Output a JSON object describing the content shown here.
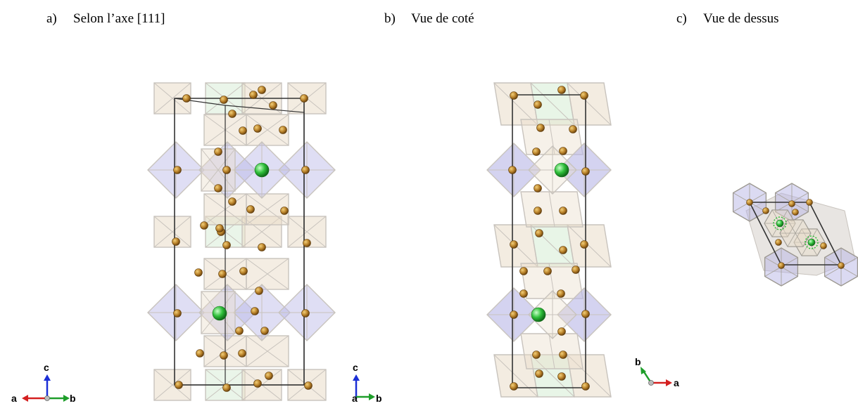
{
  "captions": {
    "a": {
      "letter": "a)",
      "text": "Selon l’axe [111]"
    },
    "b": {
      "letter": "b)",
      "text": "Vue de coté"
    },
    "c": {
      "letter": "c)",
      "text": "Vue de dessus"
    }
  },
  "triads": {
    "a": {
      "up": "c",
      "left": "a",
      "right": "b"
    },
    "b": {
      "up": "c",
      "left": "a",
      "right": "b"
    },
    "c": {
      "up": "b",
      "right": "a"
    }
  },
  "colors": {
    "octa_tan": "#e9dcc8",
    "octa_blue": "#b7b6e6",
    "octa_green": "#d5ecd3",
    "edge": "#c8c3bd",
    "cell": "#333333",
    "atom_brown": "#b07820",
    "atom_green": "#2fbf3a",
    "axis_red": "#d42020",
    "axis_green": "#1e9e2a",
    "axis_blue": "#1b2fd6"
  }
}
